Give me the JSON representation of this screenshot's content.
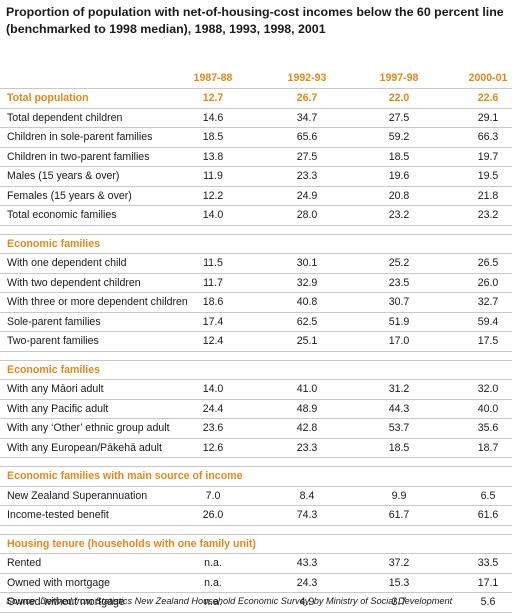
{
  "title_lines": [
    "Proportion of population with net-of-housing-cost incomes below the 60 percent line",
    "(benchmarked to 1998 median), 1988, 1993, 1998, 2001"
  ],
  "columns": [
    "1987-88",
    "1992-93",
    "1997-98",
    "2000-01"
  ],
  "groups": [
    {
      "rows": [
        {
          "label": "Total population",
          "values": [
            "12.7",
            "26.7",
            "22.0",
            "22.6"
          ],
          "section": true
        },
        {
          "label": "Total dependent children",
          "values": [
            "14.6",
            "34.7",
            "27.5",
            "29.1"
          ]
        },
        {
          "label": "Children in sole-parent families",
          "values": [
            "18.5",
            "65.6",
            "59.2",
            "66.3"
          ]
        },
        {
          "label": "Children in two-parent families",
          "values": [
            "13.8",
            "27.5",
            "18.5",
            "19.7"
          ]
        },
        {
          "label": "Males (15 years & over)",
          "values": [
            "11.9",
            "23.3",
            "19.6",
            "19.5"
          ]
        },
        {
          "label": "Females (15 years & over)",
          "values": [
            "12.2",
            "24.9",
            "20.8",
            "21.8"
          ]
        },
        {
          "label": "Total economic families",
          "values": [
            "14.0",
            "28.0",
            "23.2",
            "23.2"
          ]
        }
      ]
    },
    {
      "heading": "Economic families",
      "rows": [
        {
          "label": "With one dependent child",
          "values": [
            "11.5",
            "30.1",
            "25.2",
            "26.5"
          ]
        },
        {
          "label": "With two dependent children",
          "values": [
            "11.7",
            "32.9",
            "23.5",
            "26.0"
          ]
        },
        {
          "label": "With three or more dependent children",
          "values": [
            "18.6",
            "40.8",
            "30.7",
            "32.7"
          ]
        },
        {
          "label": "Sole-parent families",
          "values": [
            "17.4",
            "62.5",
            "51.9",
            "59.4"
          ]
        },
        {
          "label": "Two-parent families",
          "values": [
            "12.4",
            "25.1",
            "17.0",
            "17.5"
          ]
        }
      ]
    },
    {
      "heading": "Economic families",
      "rows": [
        {
          "label": "With any Māori adult",
          "values": [
            "14.0",
            "41.0",
            "31.2",
            "32.0"
          ]
        },
        {
          "label": "With any Pacific adult",
          "values": [
            "24.4",
            "48.9",
            "44.3",
            "40.0"
          ]
        },
        {
          "label": "With any ‘Other’ ethnic group adult",
          "values": [
            "23.6",
            "42.8",
            "53.7",
            "35.6"
          ]
        },
        {
          "label": "With any European/Pākehā adult",
          "values": [
            "12.6",
            "23.3",
            "18.5",
            "18.7"
          ]
        }
      ]
    },
    {
      "heading": "Economic families with main source of income",
      "rows": [
        {
          "label": "New Zealand Superannuation",
          "values": [
            "7.0",
            "8.4",
            "9.9",
            "6.5"
          ]
        },
        {
          "label": "Income-tested benefit",
          "values": [
            "26.0",
            "74.3",
            "61.7",
            "61.6"
          ]
        }
      ]
    },
    {
      "heading": "Housing tenure (households with one family unit)",
      "rows": [
        {
          "label": "Rented",
          "values": [
            "n.a.",
            "43.3",
            "37.2",
            "33.5"
          ]
        },
        {
          "label": "Owned with mortgage",
          "values": [
            "n.a.",
            "24.3",
            "15.3",
            "17.1"
          ]
        },
        {
          "label": "Owned without mortgage",
          "values": [
            "n.a.",
            "4.9",
            "3.7",
            "5.6"
          ]
        }
      ]
    }
  ],
  "source": "Source: Derived from Statistics New Zealand Household Economic Survey, by Ministry of Social Development",
  "colors": {
    "accent": "#e08a1e",
    "rule": "#c8c8c8",
    "text": "#1a1a1a"
  }
}
